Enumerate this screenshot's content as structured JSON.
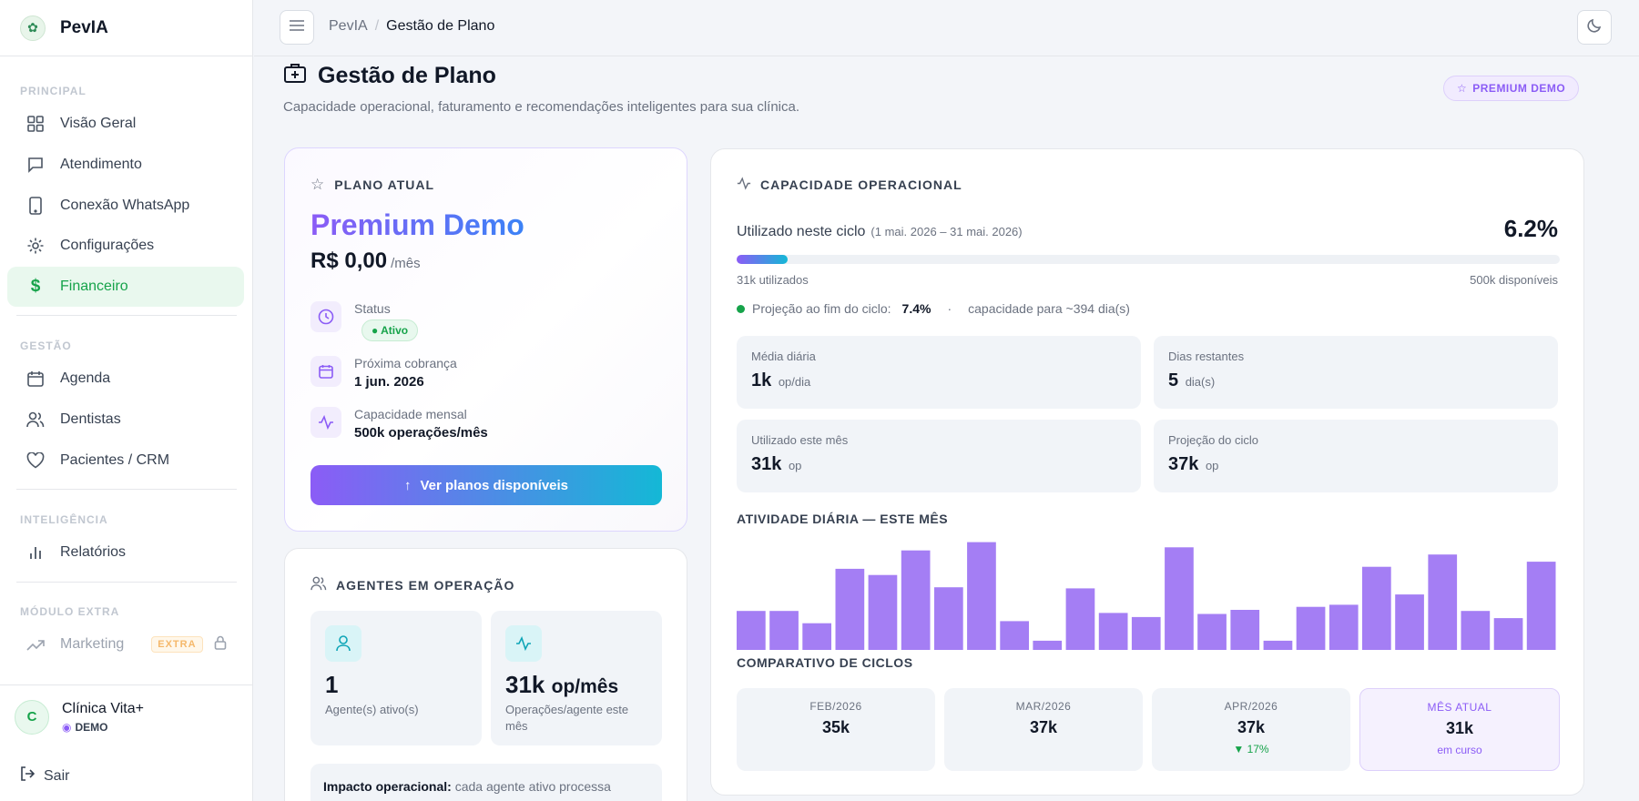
{
  "brand": {
    "name": "PevIA"
  },
  "sidebar": {
    "sections": [
      "PRINCIPAL",
      "GESTÃO",
      "INTELIGÊNCIA",
      "MÓDULO EXTRA"
    ],
    "items": [
      {
        "label": "Visão Geral"
      },
      {
        "label": "Atendimento"
      },
      {
        "label": "Conexão WhatsApp"
      },
      {
        "label": "Configurações"
      },
      {
        "label": "Financeiro"
      },
      {
        "label": "Agenda"
      },
      {
        "label": "Dentistas"
      },
      {
        "label": "Pacientes / CRM"
      },
      {
        "label": "Relatórios"
      },
      {
        "label": "Marketing",
        "badge": "EXTRA"
      }
    ],
    "clinic": {
      "initial": "C",
      "name": "Clínica Vita+",
      "tag": "DEMO"
    },
    "logout": "Sair"
  },
  "topbar": {
    "crumb_root": "PevIA",
    "crumb_sep": "/",
    "crumb_current": "Gestão de Plano"
  },
  "header": {
    "title": "Gestão de Plano",
    "subtitle": "Capacidade operacional, faturamento e recomendações inteligentes para sua clínica.",
    "badge": "PREMIUM DEMO"
  },
  "plan": {
    "section": "PLANO ATUAL",
    "name": "Premium Demo",
    "price": "R$ 0,00",
    "period": "/mês",
    "status_label": "Status",
    "status_value": "● Ativo",
    "next_label": "Próxima cobrança",
    "next_value": "1 jun. 2026",
    "capacity_label": "Capacidade mensal",
    "capacity_value": "500k operações/mês",
    "button": "Ver planos disponíveis"
  },
  "agents": {
    "section": "AGENTES EM OPERAÇÃO",
    "active_value": "1",
    "active_label": "Agente(s) ativo(s)",
    "ops_value": "31k",
    "ops_unit": "op/mês",
    "ops_label": "Operações/agente este mês",
    "impact_title": "Impacto operacional:",
    "impact_text": "cada agente ativo processa"
  },
  "capacity": {
    "section": "CAPACIDADE OPERACIONAL",
    "used_label": "Utilizado neste ciclo",
    "cycle_range": "(1 mai. 2026 – 31 mai. 2026)",
    "used_pct": "6.2%",
    "used_fraction": 0.062,
    "used_text": "31k utilizados",
    "available_text": "500k disponíveis",
    "projection_label": "Projeção ao fim do ciclo:",
    "projection_value": "7.4%",
    "projection_sep": "·",
    "projection_days": "capacidade para ~394 dia(s)",
    "stats": [
      {
        "label": "Média diária",
        "value": "1k",
        "unit": "op/dia"
      },
      {
        "label": "Dias restantes",
        "value": "5",
        "unit": "dia(s)"
      },
      {
        "label": "Utilizado este mês",
        "value": "31k",
        "unit": "op"
      },
      {
        "label": "Projeção do ciclo",
        "value": "37k",
        "unit": "op"
      }
    ],
    "activity_title": "ATIVIDADE DIÁRIA — ESTE MÊS",
    "cycles_title": "COMPARATIVO DE CICLOS",
    "cycles": [
      {
        "label": "FEB/2026",
        "value": "35k",
        "note": ""
      },
      {
        "label": "MAR/2026",
        "value": "37k",
        "note": ""
      },
      {
        "label": "APR/2026",
        "value": "37k",
        "note": "▼ 17%"
      },
      {
        "label": "MÊS ATUAL",
        "value": "31k",
        "note": "em curso"
      }
    ]
  },
  "colors": {
    "accent": "#8b5cf6",
    "success": "#16a34a",
    "bar": "#a47ef4",
    "cyan": "#14b8d6"
  },
  "chart_data": {
    "type": "bar",
    "title": "ATIVIDADE DIÁRIA — ESTE MÊS",
    "values": [
      38,
      38,
      26,
      79,
      73,
      97,
      61,
      105,
      28,
      9,
      60,
      36,
      32,
      100,
      35,
      39,
      9,
      42,
      44,
      81,
      54,
      93,
      38,
      31,
      86
    ],
    "color": "#a47ef4"
  }
}
